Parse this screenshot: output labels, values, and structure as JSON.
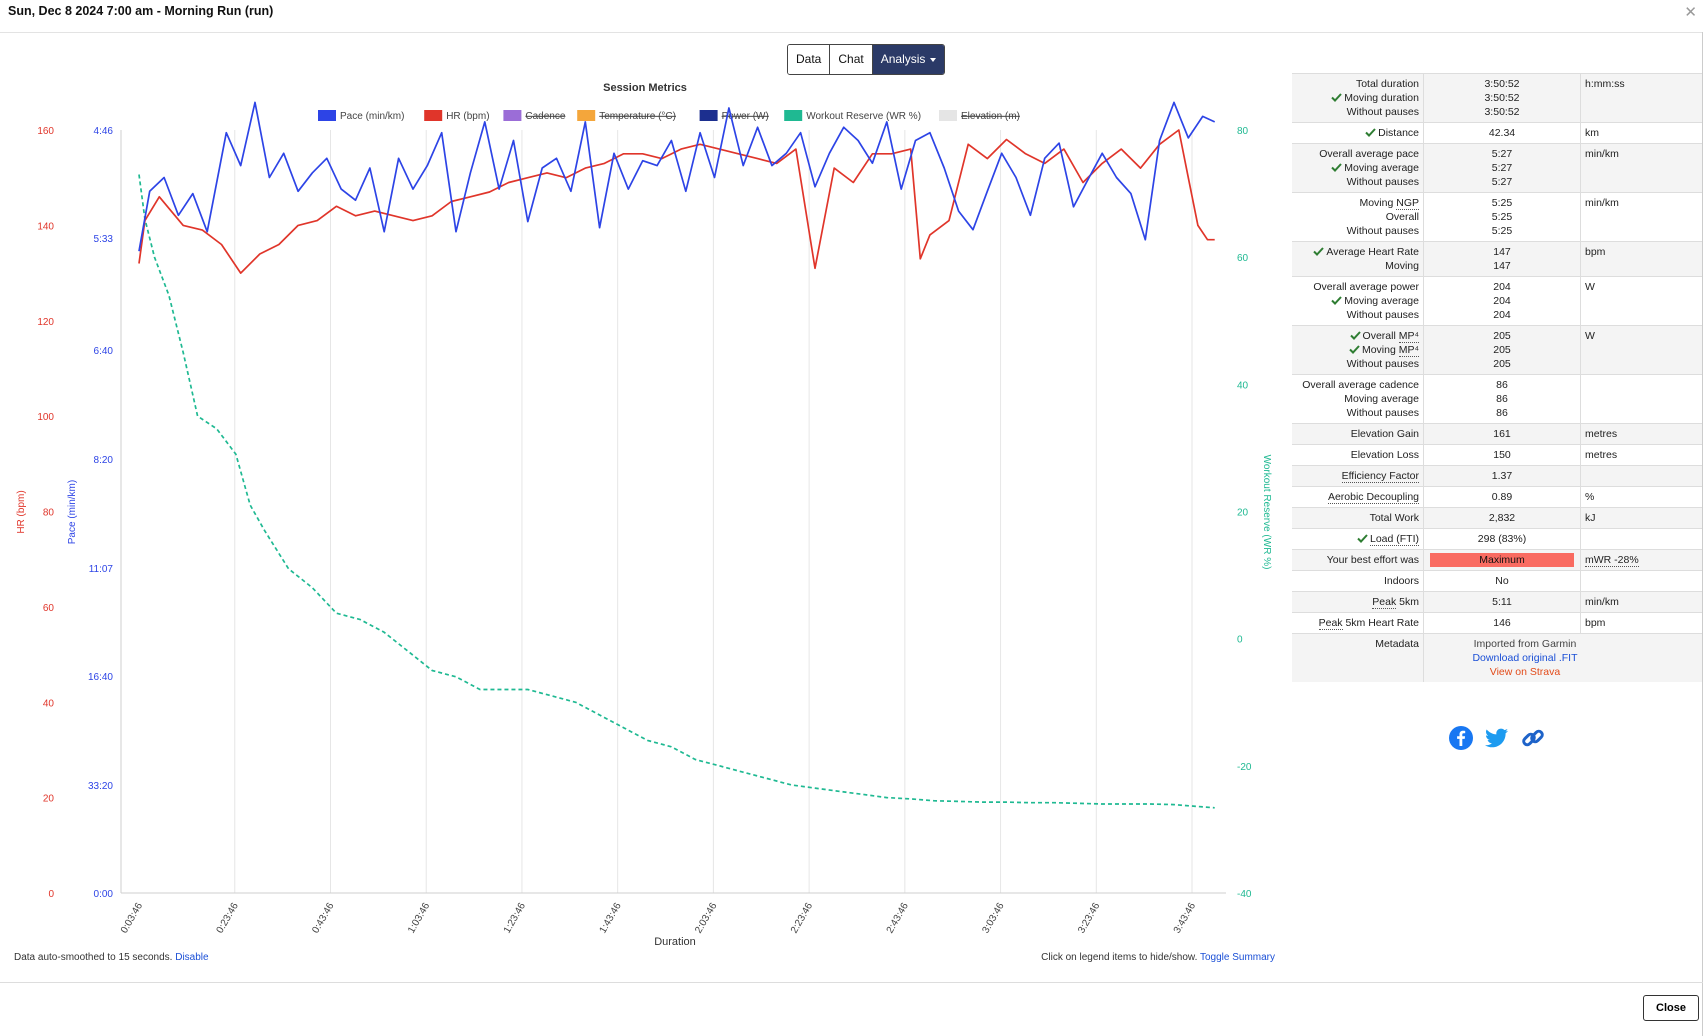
{
  "window": {
    "title": "Sun, Dec 8 2024 7:00 am - Morning Run (run)"
  },
  "tabs": [
    {
      "label": "Data"
    },
    {
      "label": "Chat"
    },
    {
      "label": "Analysis"
    }
  ],
  "colors": {
    "pace": "#2d44e6",
    "hr": "#e0352a",
    "reserve": "#1fb992",
    "accent": "#2b3a67",
    "effort": "#f96b61",
    "check": "#2e7d32"
  },
  "chart_data": {
    "type": "line",
    "title": "Session Metrics",
    "xlabel": "Duration",
    "x_ticks": [
      "0:03:46",
      "0:23:46",
      "0:43:46",
      "1:03:46",
      "1:23:46",
      "1:43:46",
      "2:03:46",
      "2:23:46",
      "2:43:46",
      "3:03:46",
      "3:23:46",
      "3:43:46"
    ],
    "x_range_min": [
      0,
      230.87
    ],
    "legend": [
      {
        "name": "Pace (min/km)",
        "color": "#2d44e6",
        "visible": true
      },
      {
        "name": "HR (bpm)",
        "color": "#e0352a",
        "visible": true
      },
      {
        "name": "Cadence",
        "color": "#9b6dd7",
        "visible": false
      },
      {
        "name": "Temperature (°C)",
        "color": "#f4a63b",
        "visible": false
      },
      {
        "name": "Power (W)",
        "color": "#1c2f8f",
        "visible": false
      },
      {
        "name": "Workout Reserve (WR %)",
        "color": "#1fb992",
        "visible": true
      },
      {
        "name": "Elevation (m)",
        "color": "#e5e5e5",
        "visible": false
      }
    ],
    "axes": {
      "hr": {
        "label": "HR (bpm)",
        "min": 0,
        "max": 160,
        "ticks": [
          "0",
          "20",
          "40",
          "60",
          "80",
          "100",
          "120",
          "140",
          "160"
        ]
      },
      "pace": {
        "label": "Pace (min/km)",
        "ticks": [
          "0:00",
          "33:20",
          "16:40",
          "11:07",
          "8:20",
          "6:40",
          "5:33",
          "4:46"
        ]
      },
      "reserve": {
        "label": "Workout Reserve (WR %)",
        "min": -40,
        "max": 80,
        "ticks": [
          "-40",
          "-20",
          "0",
          "20",
          "40",
          "60",
          "80"
        ]
      }
    },
    "series": [
      {
        "name": "HR (bpm)",
        "x_min": [
          3.77,
          5,
          8,
          13,
          17,
          21,
          25,
          29,
          33,
          37,
          41,
          45,
          49,
          53,
          57,
          61,
          65,
          69,
          73,
          77,
          81,
          85,
          89,
          93,
          97,
          101,
          105,
          109,
          113,
          117,
          121,
          125,
          129,
          133,
          137,
          141,
          145,
          149,
          153,
          157,
          161,
          165,
          167,
          169,
          173,
          177,
          181,
          185,
          189,
          193,
          197,
          201,
          205,
          209,
          213,
          217,
          221,
          223,
          225,
          227,
          228.5
        ],
        "y": [
          132,
          141,
          146,
          140,
          139,
          136,
          130,
          134,
          136,
          140,
          141,
          144,
          142,
          143,
          142,
          141,
          142,
          145,
          146,
          147,
          149,
          150,
          151,
          150,
          152,
          153,
          155,
          155,
          154,
          156,
          157,
          156,
          155,
          154,
          153,
          156,
          131,
          152,
          149,
          155,
          155,
          156,
          133,
          138,
          141,
          157,
          154,
          158,
          155,
          153,
          156,
          149,
          153,
          156,
          152,
          157,
          160,
          150,
          140,
          137,
          137
        ]
      },
      {
        "name": "Pace (min/km)",
        "x_min": [
          3.77,
          6,
          9,
          12,
          15,
          18,
          22,
          25,
          28,
          31,
          34,
          37,
          40,
          43,
          46,
          49,
          52,
          55,
          58,
          61,
          64,
          67,
          70,
          73,
          76,
          79,
          82,
          85,
          88,
          91,
          94,
          97,
          100,
          103,
          106,
          109,
          112,
          115,
          118,
          121,
          124,
          127,
          130,
          133,
          136,
          139,
          142,
          145,
          148,
          151,
          154,
          157,
          160,
          163,
          166,
          169,
          172,
          175,
          178,
          181,
          184,
          187,
          190,
          193,
          196,
          199,
          202,
          205,
          208,
          211,
          214,
          217,
          220,
          223,
          226,
          228.5
        ],
        "y": [
          340,
          311,
          305,
          322,
          312,
          330,
          287,
          300,
          276,
          305,
          295,
          311,
          303,
          297,
          310,
          315,
          301,
          330,
          297,
          310,
          300,
          287,
          330,
          303,
          283,
          310,
          290,
          325,
          301,
          297,
          311,
          283,
          328,
          295,
          310,
          298,
          300,
          290,
          311,
          287,
          305,
          278,
          300,
          285,
          300,
          295,
          287,
          309,
          295,
          285,
          290,
          299,
          283,
          310,
          290,
          287,
          301,
          320,
          329,
          311,
          295,
          305,
          322,
          297,
          291,
          318,
          306,
          295,
          305,
          312,
          334,
          290,
          276,
          289,
          281,
          283
        ]
      },
      {
        "name": "Workout Reserve (WR %)",
        "x_min": [
          3.77,
          5,
          7,
          10,
          13,
          16,
          20,
          24,
          27,
          30,
          35,
          40,
          45,
          50,
          55,
          60,
          65,
          70,
          75,
          80,
          85,
          90,
          95,
          100,
          105,
          110,
          115,
          120,
          125,
          130,
          135,
          140,
          145,
          150,
          155,
          160,
          165,
          170,
          175,
          180,
          185,
          190,
          195,
          200,
          205,
          210,
          215,
          220,
          225,
          228.5
        ],
        "y": [
          73,
          66,
          60,
          54,
          45,
          35,
          33,
          29,
          21,
          17,
          11,
          8,
          4,
          3,
          1,
          -2,
          -5,
          -6,
          -8,
          -8,
          -8,
          -9,
          -10,
          -12,
          -14,
          -16,
          -17,
          -19,
          -20,
          -21,
          -22,
          -23,
          -23.5,
          -24,
          -24.5,
          -25,
          -25.2,
          -25.5,
          -25.6,
          -25.7,
          -25.7,
          -25.8,
          -25.8,
          -25.9,
          -26,
          -26,
          -26,
          -26.1,
          -26.4,
          -26.6
        ]
      }
    ]
  },
  "footer": {
    "smoothing_text": "Data auto-smoothed to 15 seconds.",
    "disable_label": "Disable",
    "legend_hint": "Click on legend items to hide/show.",
    "toggle_label": "Toggle Summary",
    "close_label": "Close"
  },
  "summary": [
    {
      "labels": [
        {
          "text": "Total duration"
        },
        {
          "text": "Moving duration",
          "check": true
        },
        {
          "text": "Without pauses"
        }
      ],
      "values": [
        "3:50:52",
        "3:50:52",
        "3:50:52"
      ],
      "unit": "h:mm:ss"
    },
    {
      "labels": [
        {
          "text": "Distance",
          "check": true
        }
      ],
      "values": [
        "42.34"
      ],
      "unit": "km"
    },
    {
      "labels": [
        {
          "text": "Overall average pace"
        },
        {
          "text": "Moving average",
          "check": true
        },
        {
          "text": "Without pauses"
        }
      ],
      "values": [
        "5:27",
        "5:27",
        "5:27"
      ],
      "unit": "min/km"
    },
    {
      "labels": [
        {
          "text": "Moving NGP",
          "dotted": "NGP"
        },
        {
          "text": "Overall"
        },
        {
          "text": "Without pauses"
        }
      ],
      "values": [
        "5:25",
        "5:25",
        "5:25"
      ],
      "unit": "min/km"
    },
    {
      "labels": [
        {
          "text": "Average Heart Rate",
          "check": true
        },
        {
          "text": "Moving"
        }
      ],
      "values": [
        "147",
        "147"
      ],
      "unit": "bpm"
    },
    {
      "labels": [
        {
          "text": "Overall average power"
        },
        {
          "text": "Moving average",
          "check": true
        },
        {
          "text": "Without pauses"
        }
      ],
      "values": [
        "204",
        "204",
        "204"
      ],
      "unit": "W"
    },
    {
      "labels": [
        {
          "text": "Overall MP⁴",
          "check": true,
          "dotted": "MP⁴"
        },
        {
          "text": "Moving MP⁴",
          "check": true,
          "dotted": "MP⁴"
        },
        {
          "text": "Without pauses"
        }
      ],
      "values": [
        "205",
        "205",
        "205"
      ],
      "unit": "W"
    },
    {
      "labels": [
        {
          "text": "Overall average cadence"
        },
        {
          "text": "Moving average"
        },
        {
          "text": "Without pauses"
        }
      ],
      "values": [
        "86",
        "86",
        "86"
      ],
      "unit": ""
    },
    {
      "labels": [
        {
          "text": "Elevation Gain"
        }
      ],
      "values": [
        "161"
      ],
      "unit": "metres"
    },
    {
      "labels": [
        {
          "text": "Elevation Loss"
        }
      ],
      "values": [
        "150"
      ],
      "unit": "metres"
    },
    {
      "labels": [
        {
          "text": "Efficiency Factor",
          "dotted": "Efficiency Factor"
        }
      ],
      "values": [
        "1.37"
      ],
      "unit": ""
    },
    {
      "labels": [
        {
          "text": "Aerobic Decoupling",
          "dotted": "Aerobic Decoupling"
        }
      ],
      "values": [
        "0.89"
      ],
      "unit": "%"
    },
    {
      "labels": [
        {
          "text": "Total Work"
        }
      ],
      "values": [
        "2,832"
      ],
      "unit": "kJ"
    },
    {
      "labels": [
        {
          "text": "Load (FTI)",
          "check": true,
          "dotted": "Load (FTI)"
        }
      ],
      "values": [
        "298 (83%)"
      ],
      "unit": ""
    },
    {
      "labels": [
        {
          "text": "Your best effort was"
        }
      ],
      "values": [
        "Maximum"
      ],
      "unit": "mWR -28%",
      "effort": true
    },
    {
      "labels": [
        {
          "text": "Indoors"
        }
      ],
      "values": [
        "No"
      ],
      "unit": ""
    },
    {
      "labels": [
        {
          "text": "Peak 5km",
          "dotted": "Peak"
        }
      ],
      "values": [
        "5:11"
      ],
      "unit": "min/km"
    },
    {
      "labels": [
        {
          "text": "Peak 5km Heart Rate",
          "dotted": "Peak"
        }
      ],
      "values": [
        "146"
      ],
      "unit": "bpm"
    }
  ],
  "metadata": {
    "label": "Metadata",
    "imported": "Imported from Garmin",
    "download": "Download original .FIT",
    "strava": "View on Strava"
  },
  "share": {
    "icons": [
      "facebook-icon",
      "twitter-icon",
      "link-icon"
    ]
  }
}
